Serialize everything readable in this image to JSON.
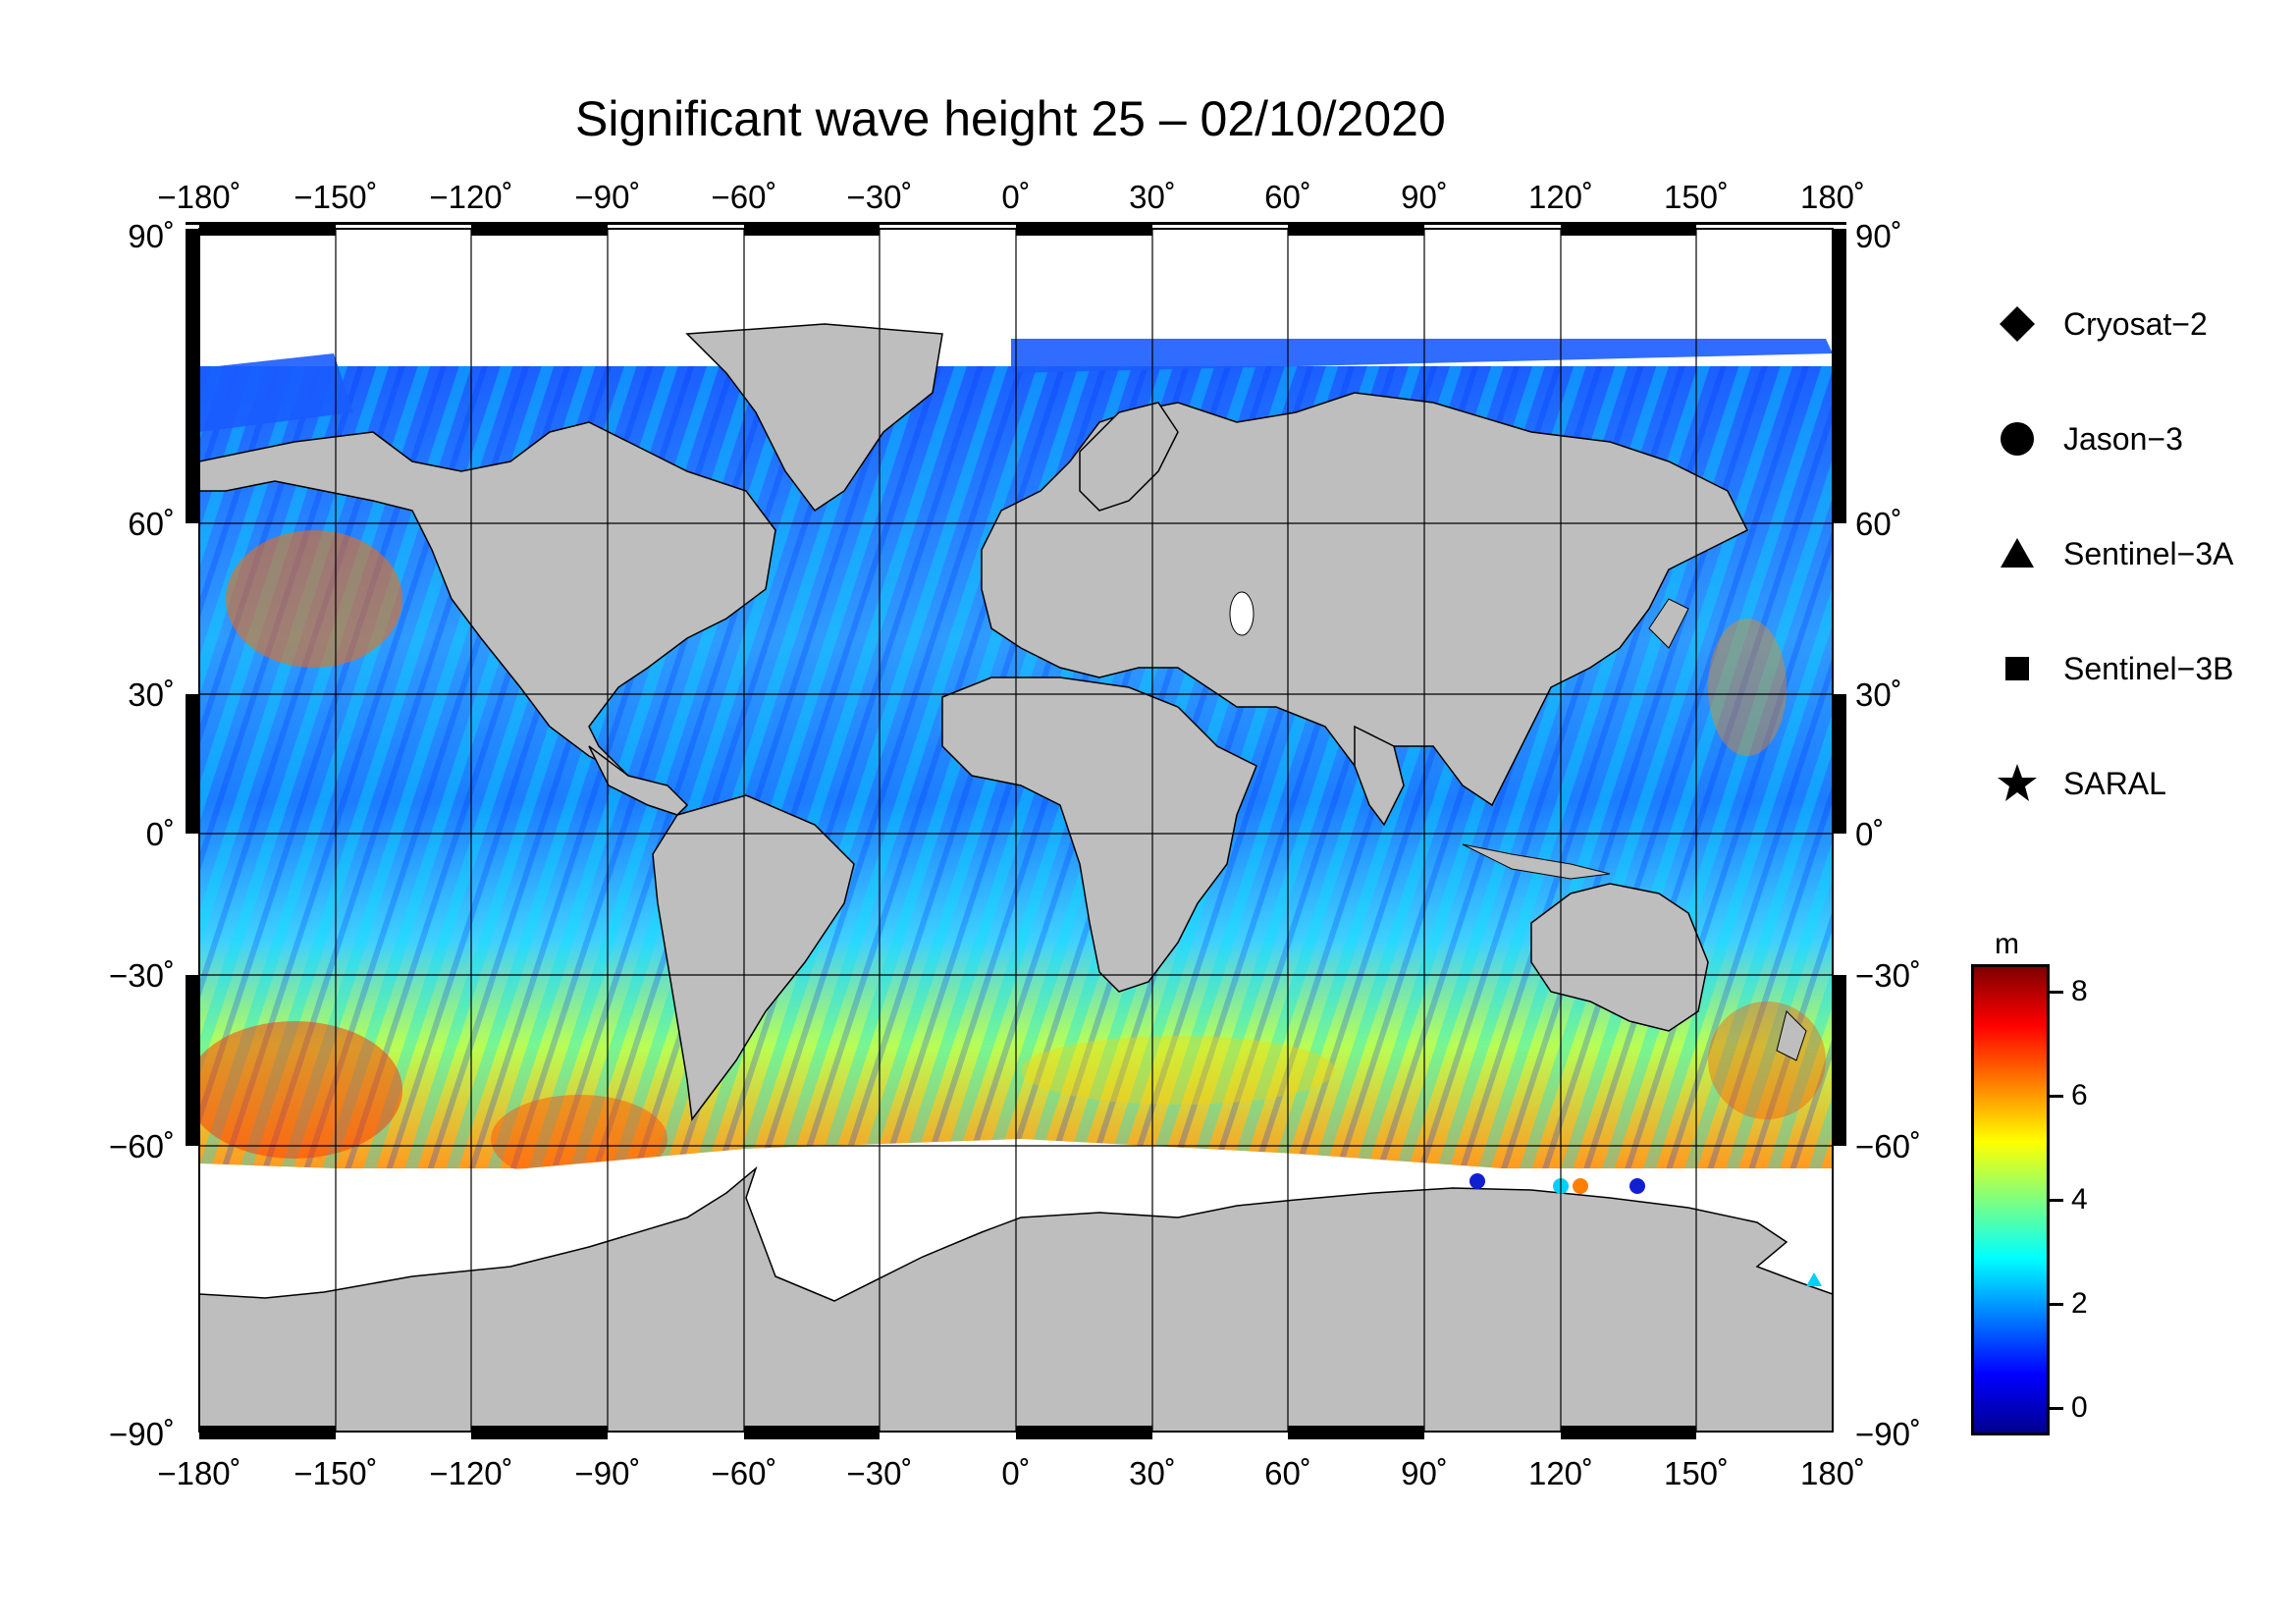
{
  "title": "Significant wave height 25 – 02/10/2020",
  "map": {
    "lon_ticks": [
      "−180˚",
      "−150˚",
      "−120˚",
      "−90˚",
      "−60˚",
      "−30˚",
      "0˚",
      "30˚",
      "60˚",
      "90˚",
      "120˚",
      "150˚",
      "180˚"
    ],
    "lat_ticks": [
      "90˚",
      "60˚",
      "30˚",
      "0˚",
      "−30˚",
      "−60˚",
      "−90˚"
    ],
    "land_color": "#bebebe",
    "ice_color": "#ffffff",
    "ocean_base_color": "#1a6cf0"
  },
  "legend": {
    "items": [
      {
        "label": "Cryosat−2",
        "symbol": "diamond-icon"
      },
      {
        "label": "Jason−3",
        "symbol": "circle-icon"
      },
      {
        "label": "Sentinel−3A",
        "symbol": "triangle-icon"
      },
      {
        "label": "Sentinel−3B",
        "symbol": "square-icon"
      },
      {
        "label": "SARAL",
        "symbol": "star-icon"
      }
    ]
  },
  "colorbar": {
    "unit": "m",
    "ticks": [
      "8",
      "6",
      "4",
      "2",
      "0"
    ],
    "min": -0.5,
    "max": 8.5,
    "colors": [
      "#00008f",
      "#0000ff",
      "#007fff",
      "#00ffff",
      "#7fff7f",
      "#ffff00",
      "#ff7f00",
      "#ff0000",
      "#7f0000"
    ]
  }
}
